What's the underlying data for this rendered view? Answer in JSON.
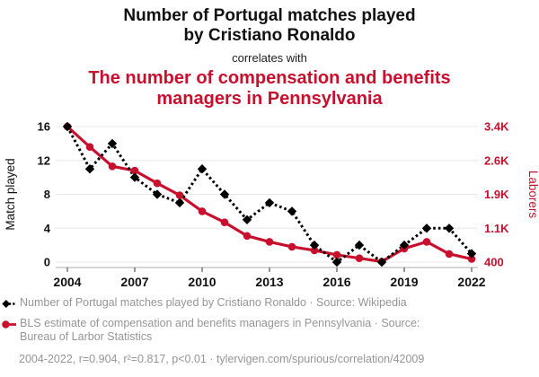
{
  "header": {
    "title": "Number of Portugal matches played\nby Cristiano Ronaldo",
    "connector": "correlates with",
    "subtitle": "The number of compensation and benefits\nmanagers in Pennsylvania"
  },
  "colors": {
    "accent": "#C8102E",
    "series_black": "#000000",
    "text_dark": "#111111",
    "text_gray": "#959595",
    "grid": "#E8E8E8",
    "axis": "#BDBDBD"
  },
  "chart_data": {
    "type": "line",
    "x": [
      2004,
      2005,
      2006,
      2007,
      2008,
      2009,
      2010,
      2011,
      2012,
      2013,
      2014,
      2015,
      2016,
      2017,
      2018,
      2019,
      2020,
      2021,
      2022
    ],
    "x_tick_labels": [
      "2004",
      "2007",
      "2010",
      "2013",
      "2016",
      "2019",
      "2022"
    ],
    "left_axis": {
      "label": "Match played",
      "ticks": [
        16,
        12,
        8,
        4,
        0
      ],
      "tick_labels": [
        "16",
        "12",
        "8",
        "4",
        "0"
      ],
      "range": [
        0,
        16
      ]
    },
    "right_axis": {
      "label": "Laborers",
      "ticks": [
        3400,
        2650,
        1900,
        1150,
        400
      ],
      "tick_labels": [
        "3.4K",
        "2.6K",
        "1.9K",
        "1.1K",
        "400"
      ],
      "range": [
        400,
        3400
      ]
    },
    "grid": "horizontal",
    "legend_position": "bottom",
    "series": [
      {
        "name": "Number of Portugal matches played by Cristiano Ronaldo",
        "axis": "left",
        "style": "dashed",
        "marker": "diamond",
        "color": "#000000",
        "values": [
          16,
          11,
          14,
          10,
          8,
          7,
          11,
          8,
          5,
          7,
          6,
          2,
          0,
          2,
          0,
          2,
          4,
          4,
          1
        ]
      },
      {
        "name": "BLS estimate of compensation and benefits managers in Pennsylvania",
        "axis": "right",
        "style": "solid",
        "marker": "circle",
        "color": "#C8102E",
        "values": [
          3400,
          2950,
          2520,
          2425,
          2145,
          1880,
          1525,
          1280,
          980,
          850,
          740,
          660,
          560,
          485,
          410,
          700,
          850,
          580,
          470
        ]
      }
    ]
  },
  "legend": {
    "items": [
      {
        "label": "Number of Portugal matches played by Cristiano Ronaldo · Source: Wikipedia",
        "label_line2": ""
      },
      {
        "label": "BLS estimate of compensation and benefits managers in Pennsylvania · Source:",
        "label_line2": "Bureau of Larbor Statistics"
      }
    ]
  },
  "footer": {
    "text": "2004-2022, r=0.904, r²=0.817, p<0.01 · tylervigen.com/spurious/correlation/42009"
  }
}
